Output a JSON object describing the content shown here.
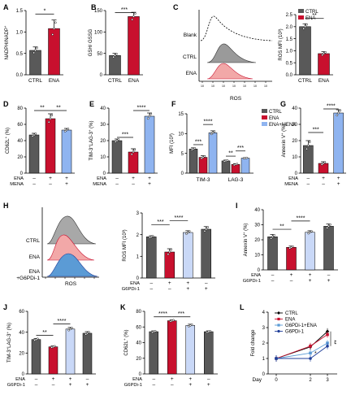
{
  "colors": {
    "ctrl": "#595959",
    "ena": "#c8102e",
    "mena": "#8fb4f0",
    "g6pdi": "#c9d8f7",
    "navy": "#1f3e99",
    "light": "#5b9bd5",
    "black": "#000000"
  },
  "condition_labels": {
    "ena": "ENA",
    "mena": "MENA",
    "g6pdi": "G6PDi-1",
    "plus": "+",
    "minus": "–"
  },
  "chart_data": [
    {
      "panel": "A",
      "type": "bar",
      "ylabel": "NADPH/NADP+",
      "categories": [
        "CTRL",
        "ENA"
      ],
      "values": [
        0.57,
        1.08
      ],
      "errors": [
        0.08,
        0.2
      ],
      "ylim": [
        0,
        1.5
      ],
      "yticks": [
        "0.0",
        "0.5",
        "1.0",
        "1.5"
      ],
      "significance": [
        {
          "label": "*"
        }
      ]
    },
    {
      "panel": "B",
      "type": "bar",
      "ylabel": "GSH/ GSSG",
      "categories": [
        "CTRL",
        "ENA"
      ],
      "values": [
        45,
        136
      ],
      "errors": [
        5,
        10
      ],
      "ylim": [
        0,
        150
      ],
      "yticks": [
        "0",
        "50",
        "100",
        "150"
      ],
      "significance": [
        {
          "label": "***"
        }
      ]
    },
    {
      "panel": "C-histogram",
      "type": "area",
      "xlabel": "ROS",
      "rows": [
        "Blank",
        "CTRL",
        "ENA"
      ]
    },
    {
      "panel": "C",
      "type": "bar",
      "ylabel": "ROS MFI (10³)",
      "categories": [
        "CTRL",
        "ENA"
      ],
      "values": [
        2.0,
        0.88
      ],
      "errors": [
        0.12,
        0.08
      ],
      "ylim": [
        0,
        2.5
      ],
      "yticks": [
        "0.0",
        "0.5",
        "1.0",
        "1.5",
        "2.0",
        "2.5"
      ],
      "significance": [
        {
          "label": "**"
        }
      ],
      "legend": [
        "CTRL",
        "ENA"
      ]
    },
    {
      "panel": "D",
      "type": "bar",
      "ylabel": "CD62L+ (%)",
      "values": [
        47,
        67,
        53
      ],
      "errors": [
        2,
        6,
        2
      ],
      "ylim": [
        0,
        80
      ],
      "yticks": [
        "0",
        "20",
        "40",
        "60",
        "80"
      ],
      "conditions": {
        "ena": [
          "–",
          "+",
          "+"
        ],
        "mena": [
          "–",
          "–",
          "+"
        ]
      },
      "significance": [
        {
          "label": "**"
        },
        {
          "label": "**"
        }
      ]
    },
    {
      "panel": "E",
      "type": "bar",
      "ylabel": "TIM-3+LAG-3+ (%)",
      "values": [
        20,
        13,
        35
      ],
      "errors": [
        1,
        2,
        2
      ],
      "ylim": [
        0,
        40
      ],
      "yticks": [
        "0",
        "10",
        "20",
        "30",
        "40"
      ],
      "conditions": {
        "ena": [
          "–",
          "+",
          "+"
        ],
        "mena": [
          "–",
          "–",
          "+"
        ]
      },
      "significance": [
        {
          "label": "***"
        },
        {
          "label": "****"
        }
      ]
    },
    {
      "panel": "F",
      "type": "bar",
      "ylabel": "MFI (10³)",
      "categories": [
        "TIM-3",
        "LAG-3"
      ],
      "series": [
        {
          "name": "CTRL",
          "values": [
            6.1,
            3.1
          ],
          "errors": [
            0.3,
            0.2
          ]
        },
        {
          "name": "ENA",
          "values": [
            4.0,
            2.2
          ],
          "errors": [
            0.4,
            0.2
          ]
        },
        {
          "name": "ENA+MENA",
          "values": [
            10.2,
            3.8
          ],
          "errors": [
            0.5,
            0.1
          ]
        }
      ],
      "ylim": [
        0,
        15
      ],
      "yticks": [
        "0",
        "5",
        "10",
        "15"
      ],
      "significance": [
        {
          "label": "***"
        },
        {
          "label": "****"
        },
        {
          "label": "**"
        },
        {
          "label": "***"
        }
      ],
      "legend": [
        "CTRL",
        "ENA",
        "ENA+MENA"
      ]
    },
    {
      "panel": "G",
      "type": "bar",
      "ylabel": "Annexin V+ (%)",
      "values": [
        17,
        6,
        37
      ],
      "errors": [
        3,
        1,
        2
      ],
      "ylim": [
        0,
        40
      ],
      "yticks": [
        "0",
        "10",
        "20",
        "30",
        "40"
      ],
      "conditions": {
        "ena": [
          "–",
          "+",
          "+"
        ],
        "mena": [
          "–",
          "–",
          "+"
        ]
      },
      "significance": [
        {
          "label": "***"
        },
        {
          "label": "****"
        }
      ]
    },
    {
      "panel": "H-histogram",
      "type": "area",
      "xlabel": "ROS",
      "rows": [
        "CTRL",
        "ENA",
        "ENA\n+G6PDi-1"
      ]
    },
    {
      "panel": "H",
      "type": "bar",
      "ylabel": "ROS MFI (10³)",
      "values": [
        1.9,
        1.2,
        2.1,
        2.25
      ],
      "errors": [
        0.05,
        0.15,
        0.08,
        0.12
      ],
      "ylim": [
        0,
        3
      ],
      "yticks": [
        "0",
        "1",
        "2",
        "3"
      ],
      "conditions": {
        "ena": [
          "–",
          "+",
          "+",
          "–"
        ],
        "g6pdi": [
          "–",
          "–",
          "+",
          "+"
        ]
      },
      "significance": [
        {
          "label": "***"
        },
        {
          "label": "****"
        }
      ]
    },
    {
      "panel": "I",
      "type": "bar",
      "ylabel": "Annexin V+ (%)",
      "values": [
        22,
        15,
        25,
        29
      ],
      "errors": [
        1.5,
        0.8,
        1,
        1.5
      ],
      "ylim": [
        0,
        40
      ],
      "yticks": [
        "0",
        "10",
        "20",
        "30",
        "40"
      ],
      "conditions": {
        "ena": [
          "–",
          "+",
          "+",
          "–"
        ],
        "g6pdi": [
          "–",
          "–",
          "+",
          "+"
        ]
      },
      "significance": [
        {
          "label": "**"
        },
        {
          "label": "****"
        }
      ]
    },
    {
      "panel": "J",
      "type": "bar",
      "ylabel": "TIM-3+LAG-3+ (%)",
      "values": [
        33,
        26,
        43,
        39
      ],
      "errors": [
        1,
        0.8,
        1.5,
        1.5
      ],
      "ylim": [
        0,
        60
      ],
      "yticks": [
        "0",
        "20",
        "40",
        "60"
      ],
      "conditions": {
        "ena": [
          "–",
          "+",
          "+",
          "–"
        ],
        "g6pdi": [
          "–",
          "–",
          "+",
          "+"
        ]
      },
      "significance": [
        {
          "label": "**"
        },
        {
          "label": "****"
        }
      ]
    },
    {
      "panel": "K",
      "type": "bar",
      "ylabel": "CD62L+ (%)",
      "values": [
        54,
        68,
        62,
        54
      ],
      "errors": [
        1,
        1,
        1.5,
        1
      ],
      "ylim": [
        0,
        80
      ],
      "yticks": [
        "0",
        "20",
        "40",
        "60",
        "80"
      ],
      "conditions": {
        "ena": [
          "–",
          "+",
          "+",
          "–"
        ],
        "g6pdi": [
          "–",
          "–",
          "+",
          "+"
        ]
      },
      "significance": [
        {
          "label": "****"
        },
        {
          "label": "***"
        }
      ]
    },
    {
      "panel": "L",
      "type": "line",
      "ylabel": "Fold change",
      "xlabel": "Day",
      "x": [
        0,
        2,
        3
      ],
      "series": [
        {
          "name": "CTRL",
          "values": [
            1.0,
            1.75,
            2.75
          ]
        },
        {
          "name": "ENA",
          "values": [
            1.0,
            1.8,
            2.55
          ]
        },
        {
          "name": "G6PDi-1+ENA",
          "values": [
            1.0,
            1.35,
            2.0
          ]
        },
        {
          "name": "G6PDi-1",
          "values": [
            1.0,
            1.0,
            1.8
          ]
        }
      ],
      "ylim": [
        0,
        4
      ],
      "yticks": [
        "0",
        "1",
        "2",
        "3",
        "4"
      ],
      "xticks": [
        "0",
        "2",
        "3"
      ],
      "significance": [
        {
          "label": "*"
        },
        {
          "label": "**"
        }
      ],
      "legend": [
        "CTRL",
        "ENA",
        "G6PDi-1+ENA",
        "G6PDi-1"
      ]
    }
  ]
}
